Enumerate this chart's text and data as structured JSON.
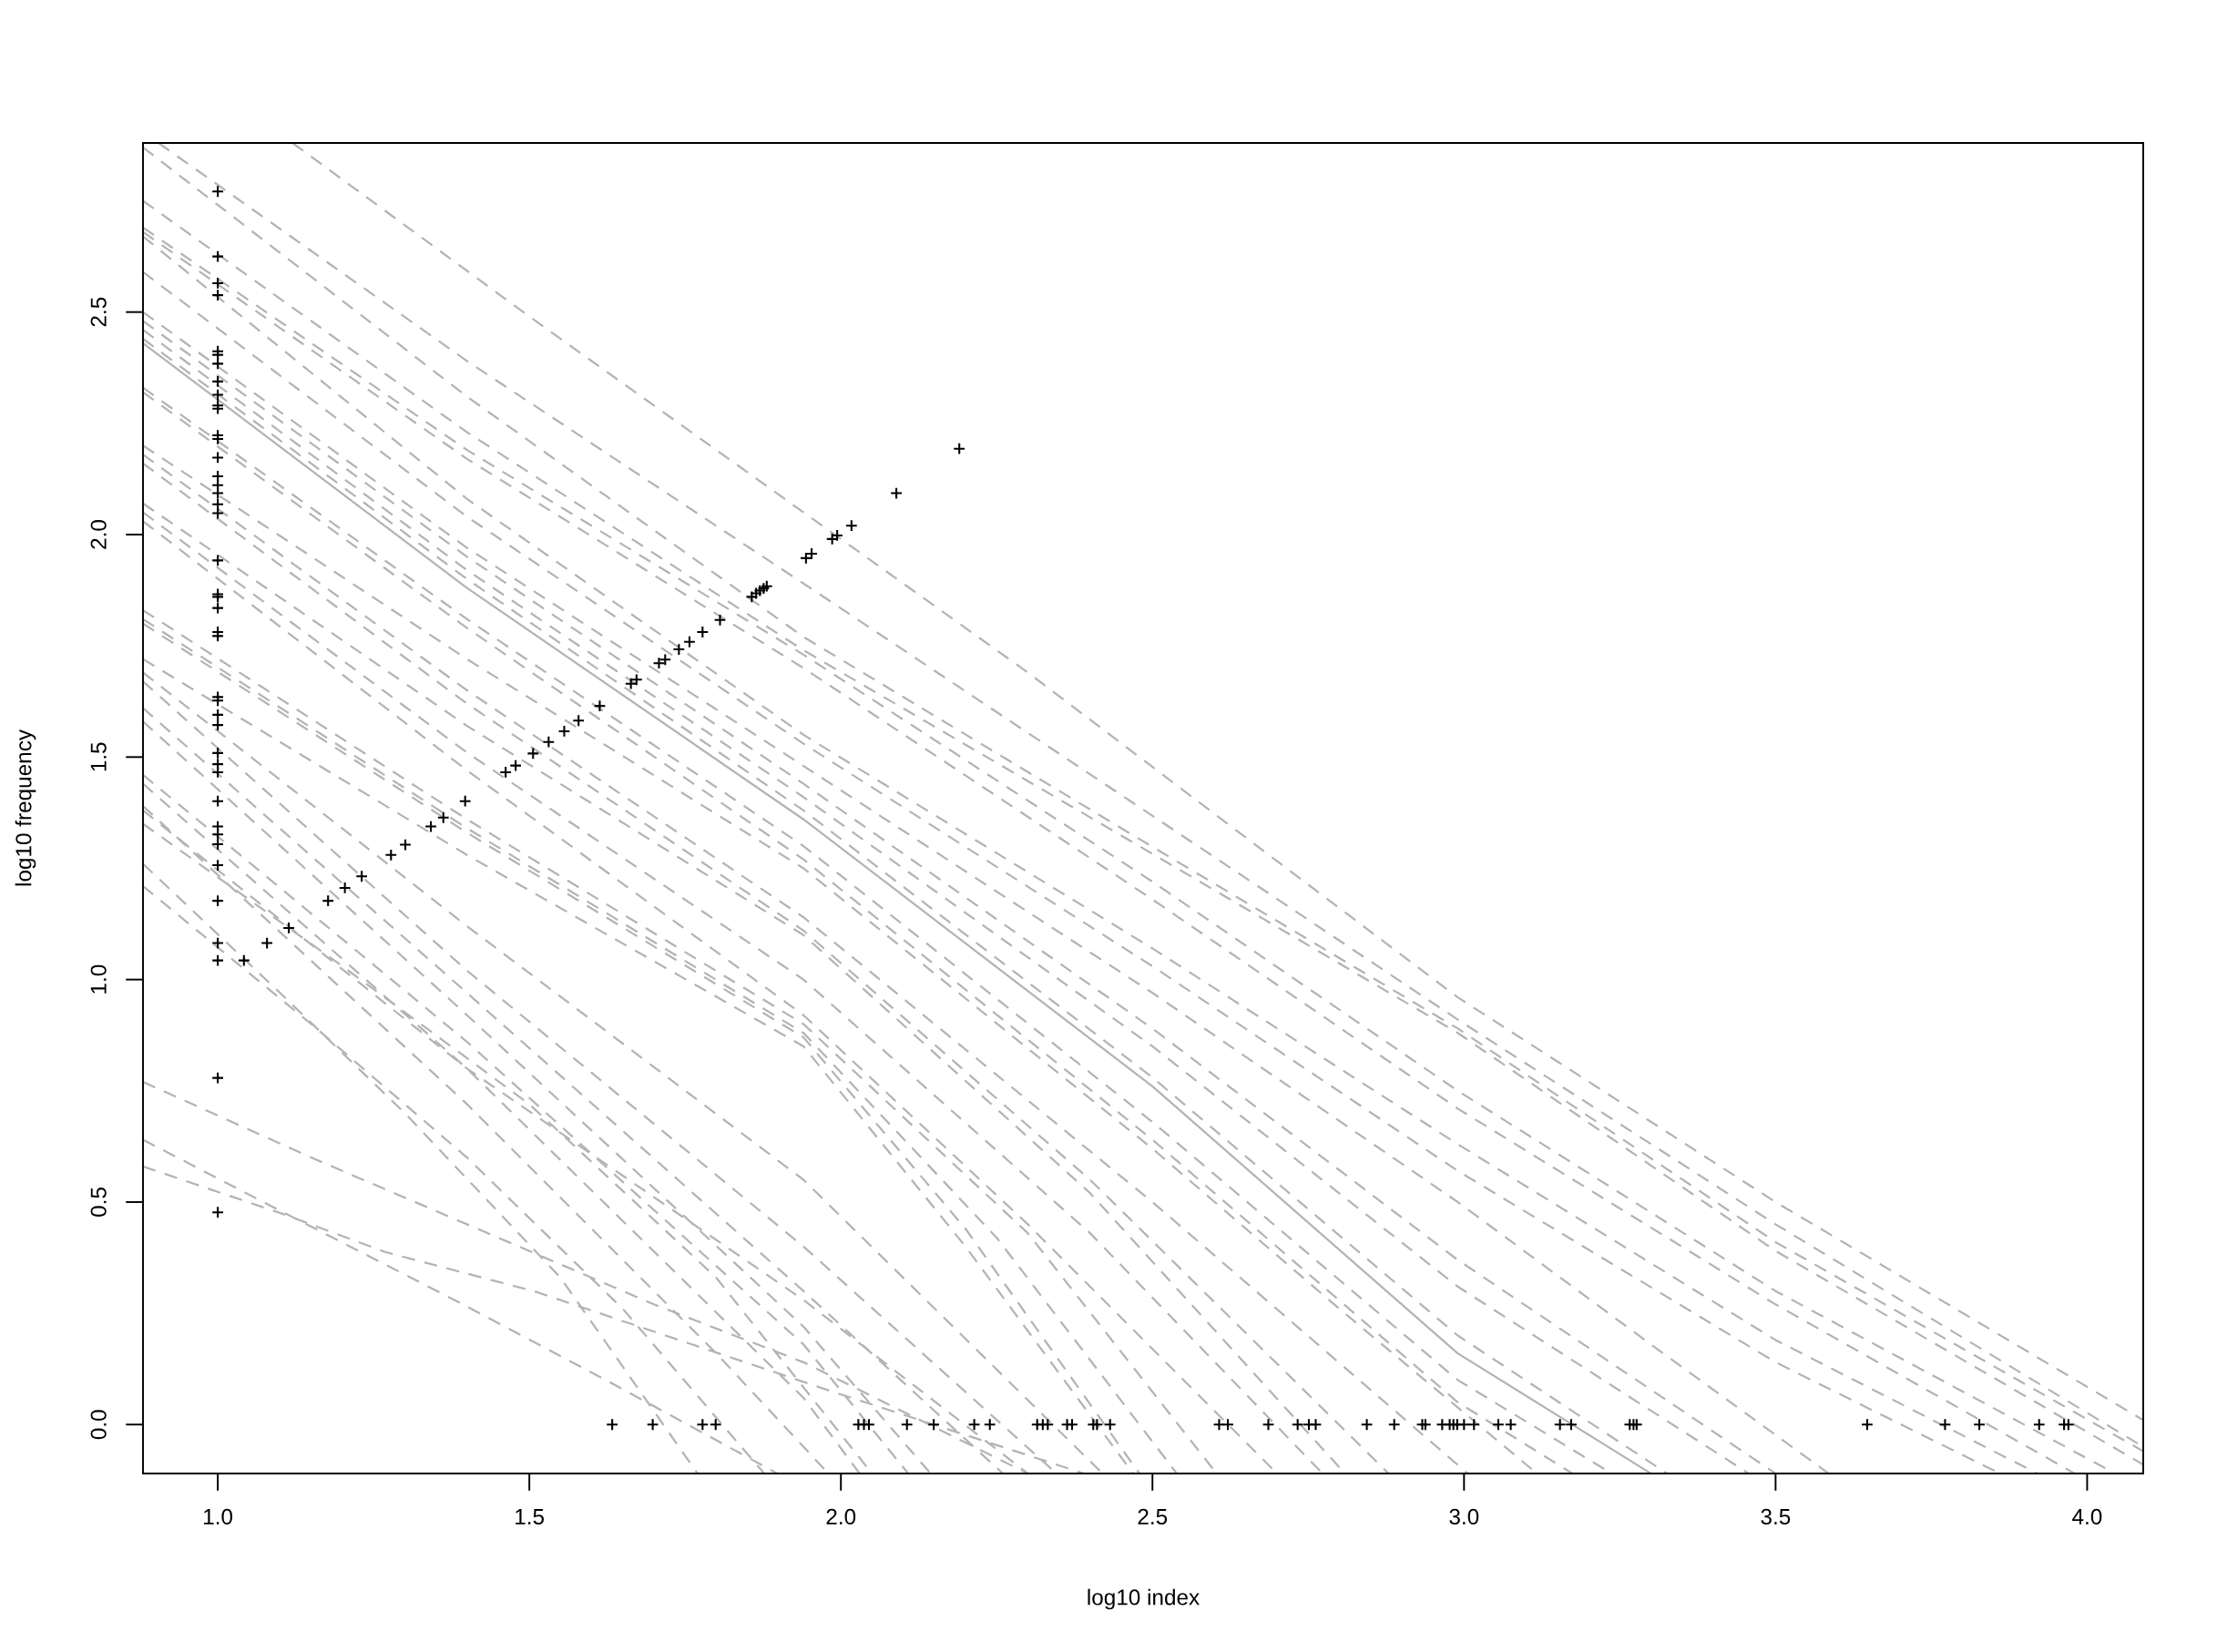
{
  "chart_data": {
    "type": "scatter",
    "xlabel": "log10 index",
    "ylabel": "log10 frequency",
    "xlim": [
      0.88,
      4.09
    ],
    "ylim": [
      -0.11,
      2.88
    ],
    "xticks": [
      {
        "value": 1,
        "label": "1.0"
      },
      1.5,
      {
        "value": 2,
        "label": "2.0"
      },
      2.5,
      {
        "value": 3,
        "label": "3.0"
      },
      3.5,
      {
        "value": 4,
        "label": "4.0"
      }
    ],
    "yticks": [
      {
        "value": 0,
        "label": "0.0"
      },
      0.5,
      {
        "value": 1,
        "label": "1.0"
      },
      1.5,
      {
        "value": 2,
        "label": "2.0"
      },
      2.5
    ],
    "line_style": "dashed",
    "series": [
      {
        "type": "line",
        "color": "#b3b3b3",
        "x": [
          1.12,
          1.5,
          1.94,
          2.3,
          2.63,
          2.99,
          3.5,
          4.09
        ],
        "values": [
          2.88,
          2.49,
          2.05,
          1.69,
          1.34,
          0.96,
          0.5,
          0.01
        ]
      },
      {
        "type": "line",
        "color": "#b3b3b3",
        "x": [
          0.905,
          1.4,
          1.94,
          2.53,
          2.99,
          3.5,
          4.09
        ],
        "values": [
          2.88,
          2.39,
          1.89,
          1.34,
          0.91,
          0.45,
          -0.05
        ]
      },
      {
        "type": "line",
        "color": "#b3b3b3",
        "x": [
          0.88,
          1.4,
          1.94,
          2.45,
          2.99,
          3.5,
          4.09
        ],
        "values": [
          2.87,
          2.31,
          1.77,
          1.34,
          0.89,
          0.41,
          -0.06
        ]
      },
      {
        "type": "line",
        "color": "#b3b3b3",
        "x": [
          0.88,
          1.4,
          1.94,
          2.43,
          2.99,
          3.5,
          4.09
        ],
        "values": [
          2.75,
          2.23,
          1.74,
          1.34,
          0.88,
          0.39,
          -0.09
        ]
      },
      {
        "type": "line",
        "color": "#b3b3b3",
        "x": [
          0.88,
          1.4,
          1.94,
          2.5,
          2.99,
          3.5,
          4.045
        ],
        "values": [
          2.69,
          2.19,
          1.73,
          1.22,
          0.75,
          0.3,
          -0.11
        ]
      },
      {
        "type": "line",
        "color": "#b3b3b3",
        "x": [
          0.88,
          1.4,
          1.94,
          2.5,
          2.99,
          3.5,
          3.98
        ],
        "values": [
          2.68,
          2.17,
          1.7,
          1.18,
          0.71,
          0.27,
          -0.11
        ]
      },
      {
        "type": "line",
        "color": "#b3b3b3",
        "x": [
          0.88,
          1.4,
          1.94,
          2.5,
          2.99,
          3.5,
          3.92
        ],
        "values": [
          2.67,
          2.08,
          1.55,
          1.07,
          0.63,
          0.19,
          -0.11
        ]
      },
      {
        "type": "line",
        "color": "#b3b3b3",
        "x": [
          0.88,
          1.4,
          1.94,
          2.5,
          2.99,
          3.5,
          3.86
        ],
        "values": [
          2.59,
          2.04,
          1.53,
          1.03,
          0.57,
          0.14,
          -0.11
        ]
      },
      {
        "type": "line",
        "color": "#b3b3b3",
        "x": [
          0.88,
          1.4,
          1.94,
          2.5,
          2.99,
          3.3,
          3.585
        ],
        "values": [
          2.5,
          1.97,
          1.48,
          0.97,
          0.5,
          0.18,
          -0.11
        ]
      },
      {
        "type": "line",
        "color": "#b3b3b3",
        "x": [
          0.88,
          1.4,
          1.94,
          2.5,
          2.99,
          3.5
        ],
        "values": [
          2.48,
          1.95,
          1.44,
          0.89,
          0.37,
          -0.11
        ]
      },
      {
        "type": "line",
        "color": "#b3b3b3",
        "x": [
          0.88,
          1.4,
          1.94,
          2.5,
          2.99,
          3.457
        ],
        "values": [
          2.46,
          1.92,
          1.41,
          0.85,
          0.31,
          -0.11
        ]
      },
      {
        "type": "line",
        "color": "#b3b3b3",
        "x": [
          0.88,
          1.4,
          1.94,
          2.5,
          2.99,
          3.326
        ],
        "values": [
          2.44,
          1.9,
          1.38,
          0.78,
          0.2,
          -0.11
        ]
      },
      {
        "type": "line",
        "color": "#b3b3b3",
        "line_style": "solid",
        "x": [
          0.88,
          1.4,
          1.94,
          2.5,
          2.99,
          3.3
        ],
        "values": [
          2.43,
          1.88,
          1.36,
          0.76,
          0.16,
          -0.11
        ]
      },
      {
        "type": "line",
        "color": "#b3b3b3",
        "x": [
          0.88,
          1.4,
          1.94,
          2.5,
          2.99,
          3.237
        ],
        "values": [
          2.33,
          1.81,
          1.3,
          0.68,
          0.1,
          -0.11
        ]
      },
      {
        "type": "line",
        "color": "#b3b3b3",
        "x": [
          0.88,
          1.4,
          1.94,
          2.5,
          2.99,
          3.174
        ],
        "values": [
          2.32,
          1.79,
          1.27,
          0.64,
          0.05,
          -0.11
        ]
      },
      {
        "type": "line",
        "color": "#b3b3b3",
        "x": [
          0.88,
          1.4,
          1.94,
          2.5,
          2.8,
          3.117
        ],
        "values": [
          2.2,
          1.72,
          1.25,
          0.62,
          0.26,
          -0.11
        ]
      },
      {
        "type": "line",
        "color": "#b3b3b3",
        "x": [
          0.88,
          1.4,
          1.94,
          2.5,
          3.006
        ],
        "values": [
          2.18,
          1.65,
          1.14,
          0.5,
          -0.11
        ]
      },
      {
        "type": "line",
        "color": "#b3b3b3",
        "x": [
          0.88,
          1.4,
          1.94,
          2.4,
          2.879
        ],
        "values": [
          2.16,
          1.62,
          1.11,
          0.55,
          -0.11
        ]
      },
      {
        "type": "line",
        "color": "#b3b3b3",
        "x": [
          0.88,
          1.4,
          1.94,
          2.4,
          2.809
        ],
        "values": [
          2.07,
          1.57,
          1.1,
          0.52,
          -0.11
        ]
      },
      {
        "type": "line",
        "color": "#b3b3b3",
        "x": [
          0.88,
          1.4,
          1.94,
          2.4,
          2.773
        ],
        "values": [
          2.05,
          1.51,
          1.0,
          0.43,
          -0.11
        ]
      },
      {
        "type": "line",
        "color": "#b3b3b3",
        "x": [
          0.88,
          1.4,
          1.94,
          2.3,
          2.7
        ],
        "values": [
          2.03,
          1.47,
          0.92,
          0.45,
          -0.11
        ]
      },
      {
        "type": "line",
        "color": "#b3b3b3",
        "x": [
          0.88,
          1.4,
          1.94,
          2.3,
          2.603
        ],
        "values": [
          1.83,
          1.36,
          0.9,
          0.43,
          -0.11
        ]
      },
      {
        "type": "line",
        "color": "#b3b3b3",
        "x": [
          0.88,
          1.4,
          1.94,
          2.25,
          2.539
        ],
        "values": [
          1.81,
          1.34,
          0.88,
          0.42,
          -0.11
        ]
      },
      {
        "type": "line",
        "color": "#b3b3b3",
        "x": [
          0.88,
          1.4,
          1.94,
          2.2,
          2.479
        ],
        "values": [
          1.8,
          1.33,
          0.87,
          0.44,
          -0.11
        ]
      },
      {
        "type": "line",
        "color": "#b3b3b3",
        "x": [
          0.88,
          1.4,
          1.94,
          2.2,
          2.469
        ],
        "values": [
          1.72,
          1.28,
          0.85,
          0.4,
          -0.11
        ]
      },
      {
        "type": "line",
        "color": "#b3b3b3",
        "x": [
          0.88,
          1.4,
          1.94,
          2.42
        ],
        "values": [
          1.69,
          1.12,
          0.55,
          -0.11
        ]
      },
      {
        "type": "line",
        "color": "#b3b3b3",
        "x": [
          0.88,
          1.4,
          1.94,
          2.346
        ],
        "values": [
          1.67,
          1.02,
          0.4,
          -0.11
        ]
      },
      {
        "type": "line",
        "color": "#b3b3b3",
        "x": [
          0.88,
          1.4,
          1.94,
          2.26
        ],
        "values": [
          1.61,
          0.97,
          0.3,
          -0.11
        ]
      },
      {
        "type": "line",
        "color": "#b3b3b3",
        "x": [
          0.88,
          1.4,
          1.94,
          2.144
        ],
        "values": [
          1.58,
          0.92,
          0.22,
          -0.11
        ]
      },
      {
        "type": "line",
        "color": "#b3b3b3",
        "x": [
          0.88,
          1.4,
          1.94,
          2.108
        ],
        "values": [
          1.46,
          0.86,
          0.18,
          -0.11
        ]
      },
      {
        "type": "line",
        "color": "#b3b3b3",
        "x": [
          0.88,
          1.4,
          1.94,
          2.03
        ],
        "values": [
          1.44,
          0.8,
          0.06,
          -0.11
        ]
      },
      {
        "type": "line",
        "color": "#b3b3b3",
        "x": [
          0.88,
          1.4,
          1.8,
          1.98
        ],
        "values": [
          1.39,
          0.72,
          0.16,
          -0.11
        ]
      },
      {
        "type": "line",
        "color": "#b3b3b3",
        "x": [
          0.88,
          1.4,
          1.94,
          2.3
        ],
        "values": [
          1.38,
          0.8,
          0.28,
          -0.11
        ]
      },
      {
        "type": "line",
        "color": "#b3b3b3",
        "x": [
          0.88,
          1.2,
          1.5,
          1.8,
          2.05
        ],
        "values": [
          1.35,
          1.03,
          0.72,
          0.33,
          -0.11
        ]
      },
      {
        "type": "line",
        "color": "#b3b3b3",
        "x": [
          0.88,
          1.1,
          1.3,
          1.55,
          1.77
        ],
        "values": [
          1.26,
          0.97,
          0.7,
          0.33,
          -0.11
        ]
      },
      {
        "type": "line",
        "color": "#b3b3b3",
        "x": [
          0.88,
          1.15,
          1.4,
          1.65,
          1.877
        ],
        "values": [
          1.21,
          0.9,
          0.6,
          0.26,
          -0.11
        ]
      },
      {
        "type": "line",
        "color": "#b3b3b3",
        "x": [
          0.88,
          1.15,
          1.4,
          1.7,
          1.94,
          2.3
        ],
        "values": [
          0.77,
          0.6,
          0.45,
          0.27,
          0.14,
          -0.11
        ]
      },
      {
        "type": "line",
        "color": "#b3b3b3",
        "x": [
          0.88,
          1.105,
          1.395,
          1.636,
          1.898
        ],
        "values": [
          0.64,
          0.477,
          0.269,
          0.09,
          -0.11
        ]
      },
      {
        "type": "line",
        "color": "#b3b3b3",
        "x": [
          0.88,
          1.105,
          1.268,
          1.509,
          1.982,
          2.39
        ],
        "values": [
          0.58,
          0.473,
          0.388,
          0.299,
          0.076,
          -0.11
        ]
      },
      {
        "color": "#000000",
        "marker": "cross",
        "x": [
          1,
          1,
          1,
          1,
          1,
          1,
          1,
          1,
          1,
          1,
          1,
          1,
          1,
          1,
          1,
          1,
          1,
          1,
          1,
          1,
          1,
          1,
          1,
          1,
          1,
          1,
          1,
          1,
          1,
          1,
          1,
          1,
          1,
          1,
          1,
          1,
          1,
          1,
          1,
          1,
          1,
          1,
          1.042,
          1.079,
          1.114,
          1.177,
          1.204,
          1.231,
          1.278,
          1.301,
          1.342,
          1.362,
          1.397,
          1.462,
          1.478,
          1.506,
          1.531,
          1.556,
          1.579,
          1.613,
          1.663,
          1.672,
          1.708,
          1.718,
          1.74,
          1.757,
          1.778,
          1.806,
          1.857,
          1.864,
          1.87,
          1.876,
          1.881,
          1.944,
          1.953,
          1.986,
          1.994,
          2.017,
          2.089,
          2.19,
          1.633,
          1.698,
          1.778,
          1.799,
          2.028,
          2.037,
          2.045,
          2.106,
          2.149,
          2.214,
          2.239,
          2.315,
          2.324,
          2.332,
          2.363,
          2.371,
          2.405,
          2.411,
          2.432,
          2.607,
          2.621,
          2.686,
          2.733,
          2.751,
          2.762,
          2.844,
          2.888,
          2.933,
          2.938,
          2.965,
          2.977,
          2.983,
          2.989,
          3.0,
          3.016,
          3.055,
          3.075,
          3.154,
          3.172,
          3.266,
          3.272,
          3.277,
          3.647,
          3.772,
          3.827,
          3.923,
          3.963,
          3.97
        ],
        "values": [
          2.771,
          2.625,
          2.565,
          2.538,
          2.412,
          2.404,
          2.384,
          2.344,
          2.314,
          2.29,
          2.283,
          2.223,
          2.215,
          2.173,
          2.131,
          2.111,
          2.093,
          2.068,
          2.048,
          1.942,
          1.866,
          1.86,
          1.835,
          1.781,
          1.772,
          1.635,
          1.627,
          1.595,
          1.572,
          1.509,
          1.484,
          1.466,
          1.401,
          1.344,
          1.326,
          1.304,
          1.257,
          1.177,
          1.082,
          1.043,
          0.779,
          0.477,
          1.043,
          1.082,
          1.116,
          1.177,
          1.206,
          1.232,
          1.28,
          1.303,
          1.344,
          1.364,
          1.401,
          1.466,
          1.481,
          1.508,
          1.534,
          1.558,
          1.582,
          1.615,
          1.665,
          1.674,
          1.711,
          1.719,
          1.742,
          1.759,
          1.781,
          1.808,
          1.86,
          1.868,
          1.874,
          1.879,
          1.884,
          1.947,
          1.957,
          1.99,
          1.998,
          2.02,
          2.093,
          2.193,
          0,
          0,
          0,
          0,
          0,
          0,
          0,
          0,
          0,
          0,
          0,
          0,
          0,
          0,
          0,
          0,
          0,
          0,
          0,
          0,
          0,
          0,
          0,
          0,
          0,
          0,
          0,
          0,
          0,
          0,
          0,
          0,
          0,
          0,
          0,
          0,
          0,
          0,
          0,
          0,
          0,
          0,
          0,
          0,
          0,
          0,
          0,
          0
        ]
      }
    ]
  }
}
